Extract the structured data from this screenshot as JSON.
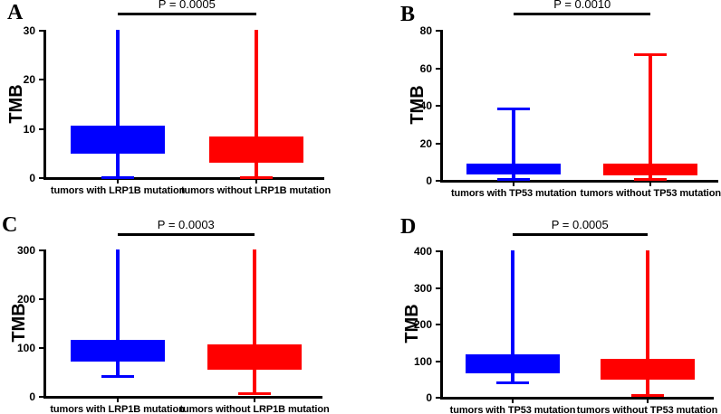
{
  "figure": {
    "background": "#ffffff",
    "axis_color": "#000000",
    "group_colors": {
      "with_mutation": "#0000ff",
      "without_mutation": "#ff0000"
    }
  },
  "chart_data": [
    {
      "type": "box",
      "panel": "A",
      "ylabel": "TMB",
      "ylim": [
        0,
        30
      ],
      "yticks": [
        0,
        10,
        20,
        30
      ],
      "p_label": "P = 0.0005",
      "series": [
        {
          "name": "tumors with LRP1B mutation",
          "color": "#0000ff",
          "q1": 4.7,
          "q3": 10.5,
          "whisker_low": 0,
          "whisker_high": 30,
          "cap_low": true,
          "cap_high": false
        },
        {
          "name": "tumors without LRP1B mutation",
          "color": "#ff0000",
          "q1": 3.0,
          "q3": 8.2,
          "whisker_low": 0,
          "whisker_high": 30,
          "cap_low": true,
          "cap_high": false
        }
      ]
    },
    {
      "type": "box",
      "panel": "B",
      "ylabel": "TMB",
      "ylim": [
        0,
        80
      ],
      "yticks": [
        0,
        20,
        40,
        60,
        80
      ],
      "p_label": "P = 0.0010",
      "series": [
        {
          "name": "tumors with TP53 mutation",
          "color": "#0000ff",
          "q1": 3.0,
          "q3": 8.5,
          "whisker_low": 0.5,
          "whisker_high": 38,
          "cap_low": true,
          "cap_high": true
        },
        {
          "name": "tumors without TP53 mutation",
          "color": "#ff0000",
          "q1": 2.3,
          "q3": 8.5,
          "whisker_low": 0.3,
          "whisker_high": 67,
          "cap_low": true,
          "cap_high": true
        }
      ]
    },
    {
      "type": "box",
      "panel": "C",
      "ylabel": "TMB",
      "ylim": [
        0,
        300
      ],
      "yticks": [
        0,
        100,
        200,
        300
      ],
      "p_label": "P = 0.0003",
      "series": [
        {
          "name": "tumors with LRP1B mutation",
          "color": "#0000ff",
          "q1": 70,
          "q3": 115,
          "whisker_low": 40,
          "whisker_high": 300,
          "cap_low": true,
          "cap_high": false
        },
        {
          "name": "tumors without LRP1B mutation",
          "color": "#ff0000",
          "q1": 53,
          "q3": 105,
          "whisker_low": 5,
          "whisker_high": 300,
          "cap_low": true,
          "cap_high": false
        }
      ]
    },
    {
      "type": "box",
      "panel": "D",
      "ylabel": "TMB",
      "ylim": [
        0,
        400
      ],
      "yticks": [
        0,
        100,
        200,
        300,
        400
      ],
      "p_label": "P = 0.0005",
      "series": [
        {
          "name": "tumors with TP53 mutation",
          "color": "#0000ff",
          "q1": 63,
          "q3": 115,
          "whisker_low": 40,
          "whisker_high": 400,
          "cap_low": true,
          "cap_high": false
        },
        {
          "name": "tumors without TP53 mutation",
          "color": "#ff0000",
          "q1": 48,
          "q3": 103,
          "whisker_low": 5,
          "whisker_high": 400,
          "cap_low": true,
          "cap_high": false
        }
      ]
    }
  ]
}
